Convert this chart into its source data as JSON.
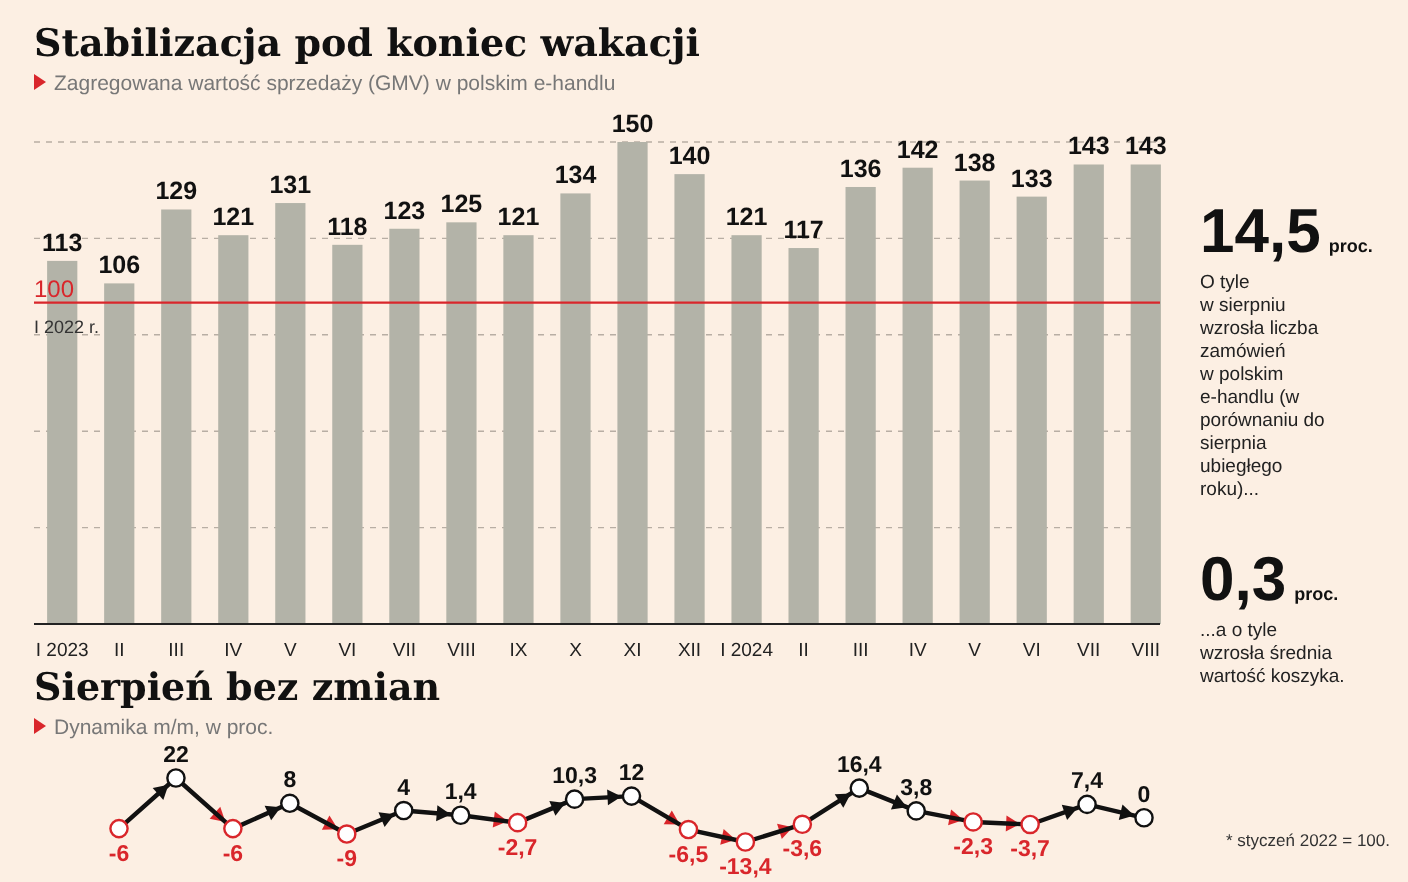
{
  "chart_data": [
    {
      "type": "bar",
      "title": "Stabilizacja pod koniec wakacji",
      "subtitle": "Zagregowana wartość sprzedaży (GMV) w polskim e-handlu",
      "categories": [
        "I 2023",
        "II",
        "III",
        "IV",
        "V",
        "VI",
        "VII",
        "VIII",
        "IX",
        "X",
        "XI",
        "XII",
        "I 2024",
        "II",
        "III",
        "IV",
        "V",
        "VI",
        "VII",
        "VIII"
      ],
      "values": [
        113,
        106,
        129,
        121,
        131,
        118,
        123,
        125,
        121,
        134,
        150,
        140,
        121,
        117,
        136,
        142,
        138,
        133,
        143,
        143
      ],
      "color": "#b3b3a8",
      "data_labels": true,
      "ylim": [
        0,
        150
      ],
      "yticks": [
        {
          "value": 30,
          "label": null
        },
        {
          "value": 60,
          "label": null
        },
        {
          "value": 90,
          "label": null
        },
        {
          "value": 120,
          "label": null
        },
        {
          "value": 150,
          "label": null
        }
      ],
      "tick_labels": "x",
      "grid": "y",
      "ref_lines": [
        {
          "axis": "y",
          "value": 100,
          "label": "100",
          "color": "#d9262b"
        }
      ],
      "annotations": [
        {
          "text": "I 2022 r.",
          "y": 100
        },
        "* styczeń 2022 = 100."
      ]
    },
    {
      "type": "line",
      "title": "Sierpień bez zmian",
      "subtitle": "Dynamika m/m, w proc.",
      "marker": "circle",
      "color": "#111111",
      "categories": [
        null,
        null,
        null,
        null,
        null,
        null,
        null,
        null,
        null,
        null,
        null,
        null,
        null,
        null,
        null,
        null,
        null,
        null,
        null
      ],
      "values": [
        -6,
        22,
        -6,
        8,
        -9,
        4,
        1.4,
        -2.7,
        10.3,
        12,
        -6.5,
        -13.4,
        -3.6,
        16.4,
        3.8,
        -2.3,
        -3.7,
        7.4,
        0
      ],
      "value_labels": [
        "-6",
        "22",
        "-6",
        "8",
        "-9",
        "4",
        "1,4",
        "-2,7",
        "10,3",
        "12",
        "-6,5",
        "-13,4",
        "-3,6",
        "16,4",
        "3,8",
        "-2,3",
        "-3,7",
        "7,4",
        "0"
      ],
      "colors": [
        "#d9262b",
        "#111111",
        "#d9262b",
        "#111111",
        "#d9262b",
        "#111111",
        "#111111",
        "#d9262b",
        "#111111",
        "#111111",
        "#d9262b",
        "#d9262b",
        "#d9262b",
        "#111111",
        "#111111",
        "#d9262b",
        "#d9262b",
        "#111111",
        "#111111"
      ]
    },
    {
      "type": "other",
      "annotations": [
        "14,5",
        "proc.",
        "O tyle w sierpniu wzrosła liczba zamówień w polskim e-handlu (w porównaniu do sierpnia ubiegłego roku)...",
        "0,3",
        "proc.",
        "...a o tyle wzrosła średnia wartość koszyka."
      ]
    }
  ]
}
